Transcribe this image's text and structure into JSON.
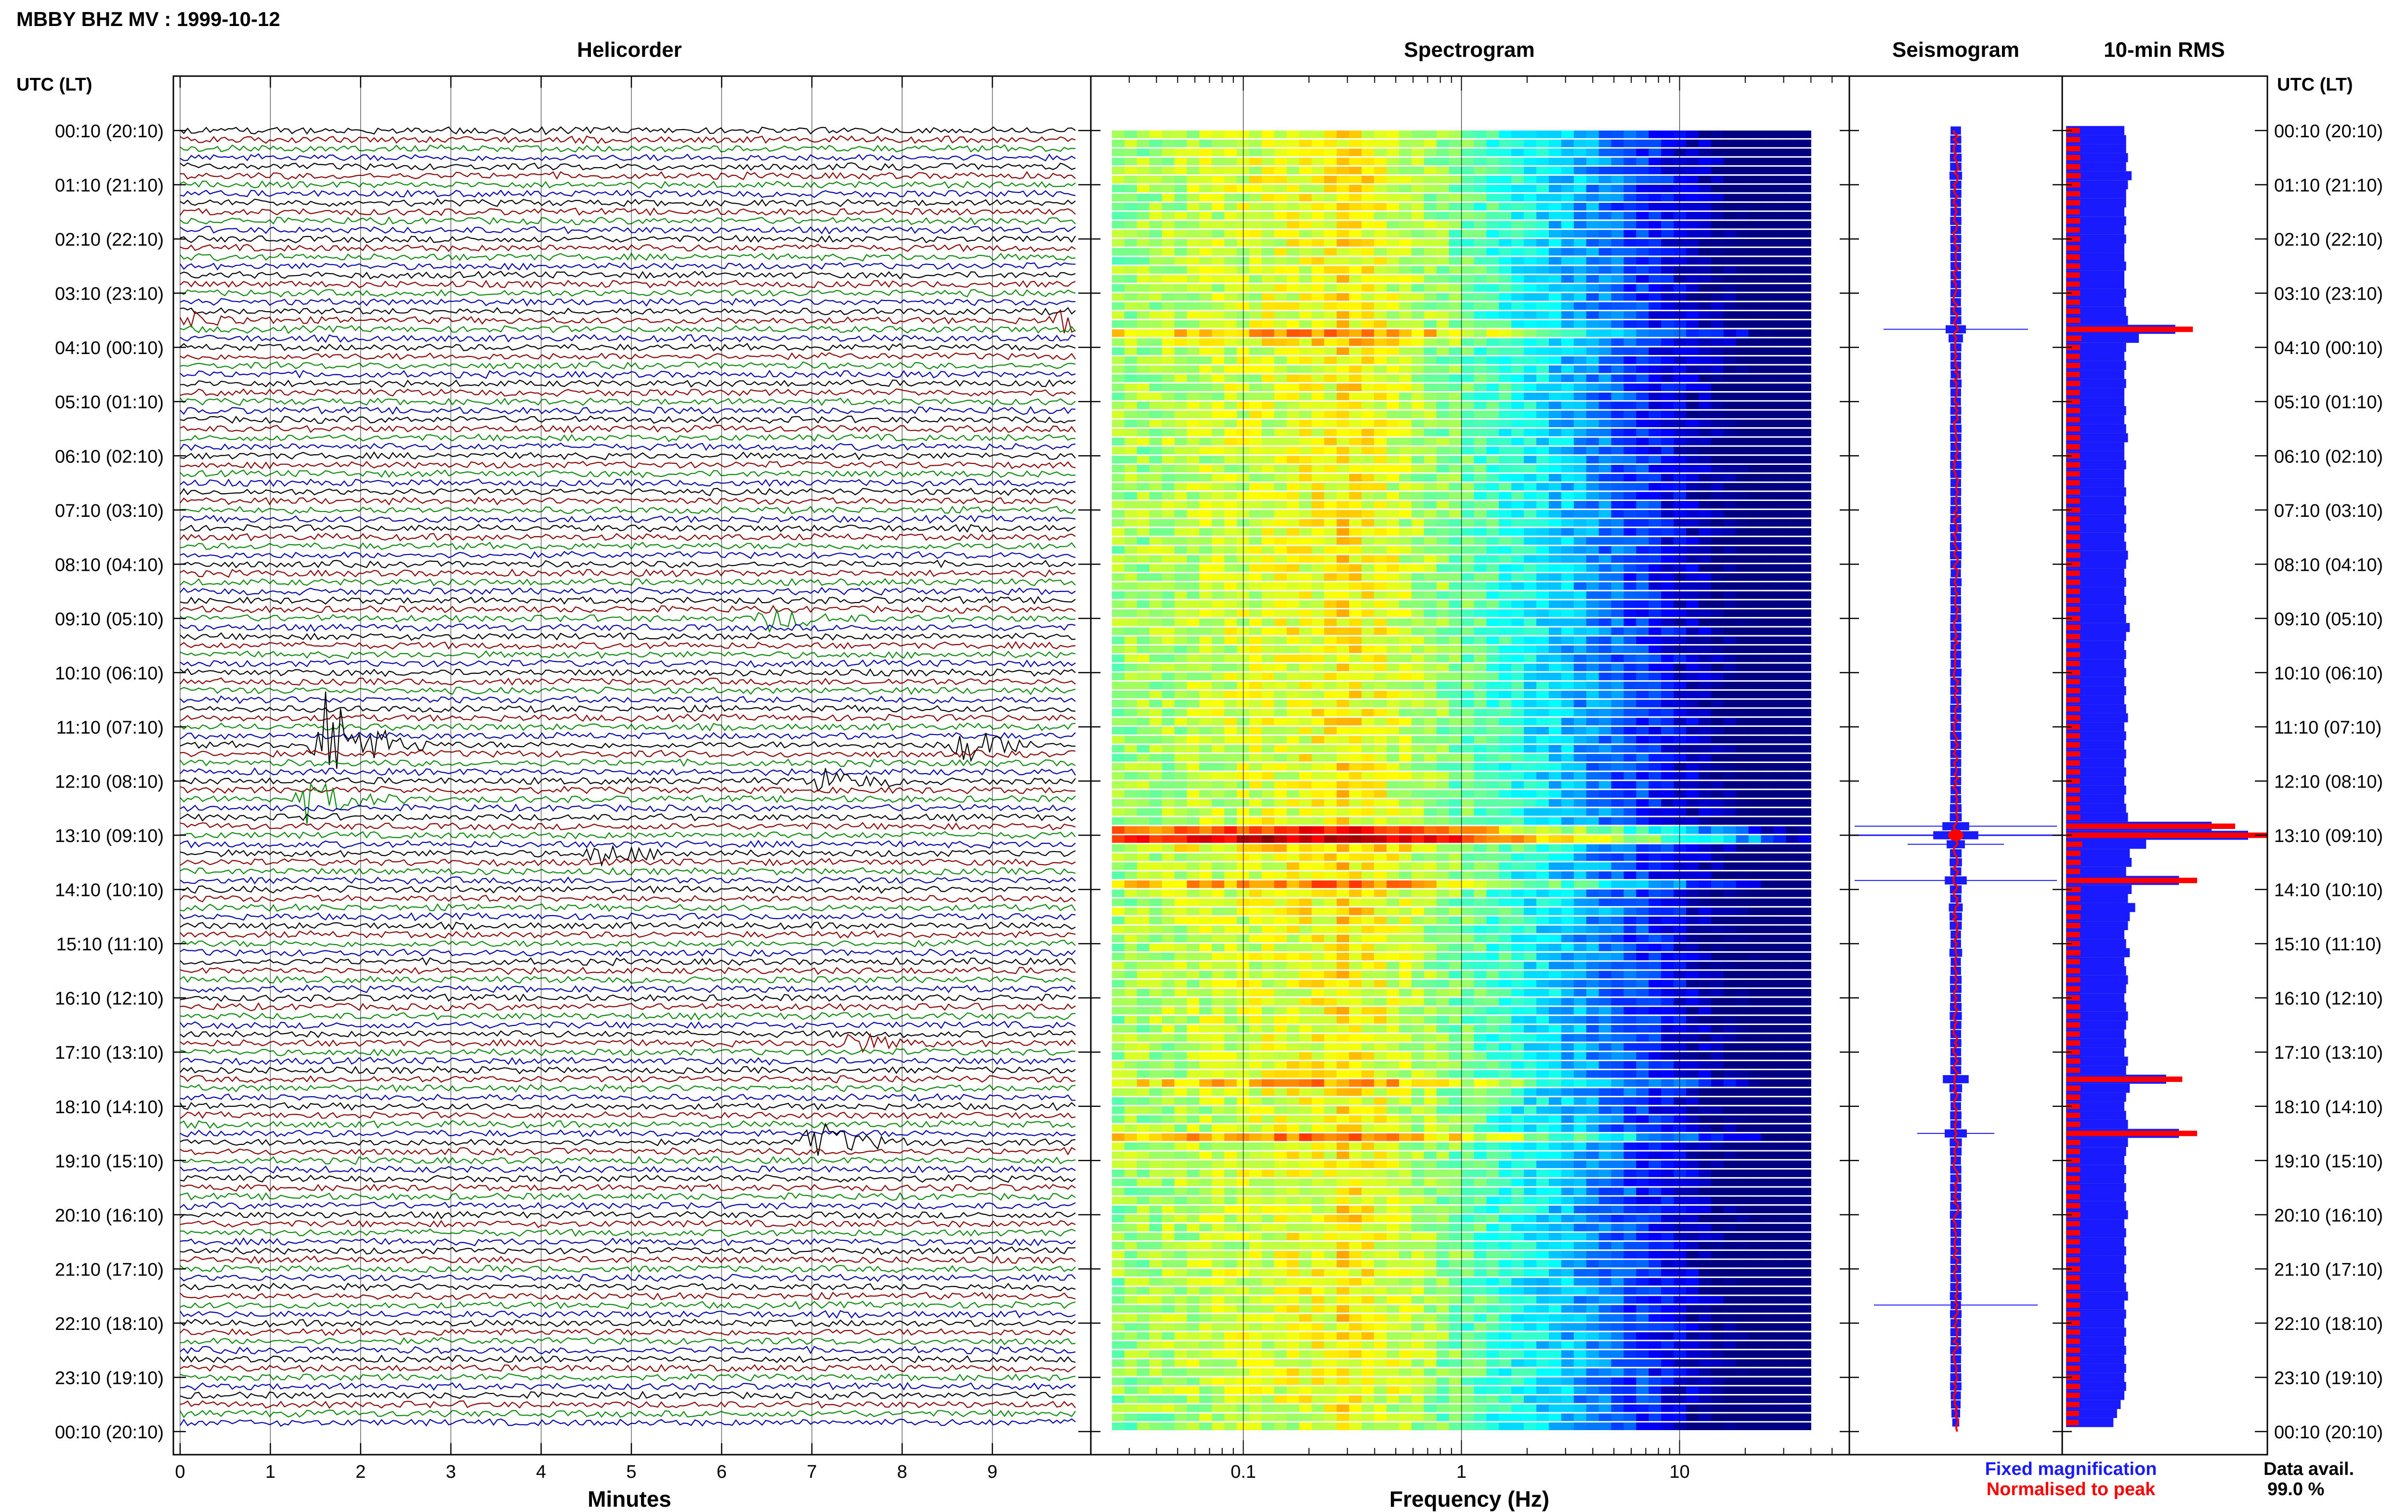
{
  "header": {
    "station_title": "MBBY BHZ MV : 1999-10-12"
  },
  "panels": {
    "helicorder": "Helicorder",
    "spectrogram": "Spectrogram",
    "seismogram": "Seismogram",
    "rms": "10-min RMS"
  },
  "axis": {
    "time_label_left": "UTC (LT)",
    "time_label_right": "UTC (LT)",
    "x_label_helicorder": "Minutes",
    "x_label_spectrogram": "Frequency (Hz)"
  },
  "time_ticks": [
    "00:10 (20:10)",
    "01:10 (21:10)",
    "02:10 (22:10)",
    "03:10 (23:10)",
    "04:10 (00:10)",
    "05:10 (01:10)",
    "06:10 (02:10)",
    "07:10 (03:10)",
    "08:10 (04:10)",
    "09:10 (05:10)",
    "10:10 (06:10)",
    "11:10 (07:10)",
    "12:10 (08:10)",
    "13:10 (09:10)",
    "14:10 (10:10)",
    "15:10 (11:10)",
    "16:10 (12:10)",
    "17:10 (13:10)",
    "18:10 (14:10)",
    "19:10 (15:10)",
    "20:10 (16:10)",
    "21:10 (17:10)",
    "22:10 (18:10)",
    "23:10 (19:10)",
    "00:10 (20:10)"
  ],
  "minute_ticks": [
    "0",
    "1",
    "2",
    "3",
    "4",
    "5",
    "6",
    "7",
    "8",
    "9"
  ],
  "freq_ticks": [
    "0.1",
    "1",
    "10"
  ],
  "legend": {
    "fixed": "Fixed magnification",
    "normalised": "Normalised to peak",
    "fixed_color": "#1a1aff",
    "normalised_color": "#ff0000"
  },
  "availability": {
    "label": "Data avail.",
    "value": "99.0 %"
  },
  "trace_colors": [
    "#000000",
    "#8b0000",
    "#0a8a0a",
    "#0000b0"
  ],
  "chart_data": [
    {
      "type": "line",
      "title": "Helicorder",
      "xlabel": "Minutes",
      "xlim": [
        0,
        10
      ],
      "rows_per_hour": 6,
      "row_count": 144,
      "events": [
        {
          "time": "03:40",
          "minute": 9.8,
          "amplitude": "large"
        },
        {
          "time": "03:40",
          "minute": 0.1,
          "amplitude": "small"
        },
        {
          "time": "09:10",
          "minute": 6.5,
          "amplitude": "medium"
        },
        {
          "time": "11:30",
          "minute": 1.6,
          "amplitude": "very large"
        },
        {
          "time": "11:30",
          "minute": 8.6,
          "amplitude": "large"
        },
        {
          "time": "12:10",
          "minute": 7.1,
          "amplitude": "medium"
        },
        {
          "time": "12:30",
          "minute": 1.4,
          "amplitude": "large"
        },
        {
          "time": "13:30",
          "minute": 4.6,
          "amplitude": "medium"
        },
        {
          "time": "17:00",
          "minute": 7.3,
          "amplitude": "medium"
        },
        {
          "time": "18:50",
          "minute": 7.0,
          "amplitude": "large"
        }
      ]
    },
    {
      "type": "heatmap",
      "title": "Spectrogram",
      "xlabel": "Frequency (Hz)",
      "xscale": "log",
      "xlim": [
        0.025,
        40
      ],
      "peak_band_hz": [
        0.2,
        0.35
      ]
    },
    {
      "type": "line",
      "title": "Seismogram",
      "series": [
        {
          "name": "Fixed magnification"
        },
        {
          "name": "Normalised to peak"
        }
      ]
    },
    {
      "type": "bar",
      "title": "10-min RMS",
      "orientation": "horizontal",
      "series": [
        {
          "name": "Fixed magnification"
        },
        {
          "name": "Normalised to peak"
        }
      ],
      "rms_relative": [
        0.32,
        0.33,
        0.33,
        0.34,
        0.33,
        0.36,
        0.34,
        0.33,
        0.33,
        0.32,
        0.33,
        0.32,
        0.33,
        0.32,
        0.32,
        0.33,
        0.32,
        0.32,
        0.33,
        0.32,
        0.33,
        0.34,
        0.6,
        0.4,
        0.33,
        0.32,
        0.33,
        0.32,
        0.33,
        0.32,
        0.32,
        0.33,
        0.32,
        0.33,
        0.34,
        0.32,
        0.32,
        0.33,
        0.32,
        0.32,
        0.33,
        0.32,
        0.33,
        0.32,
        0.33,
        0.32,
        0.33,
        0.34,
        0.33,
        0.32,
        0.33,
        0.32,
        0.33,
        0.32,
        0.33,
        0.35,
        0.33,
        0.32,
        0.33,
        0.32,
        0.33,
        0.32,
        0.33,
        0.32,
        0.33,
        0.34,
        0.32,
        0.33,
        0.32,
        0.33,
        0.32,
        0.33,
        0.32,
        0.33,
        0.32,
        0.33,
        0.34,
        0.8,
        1.0,
        0.44,
        0.35,
        0.36,
        0.33,
        0.62,
        0.36,
        0.34,
        0.38,
        0.35,
        0.34,
        0.32,
        0.33,
        0.35,
        0.32,
        0.33,
        0.34,
        0.33,
        0.32,
        0.33,
        0.34,
        0.33,
        0.32,
        0.33,
        0.32,
        0.34,
        0.33,
        0.55,
        0.35,
        0.33,
        0.32,
        0.33,
        0.34,
        0.62,
        0.34,
        0.33,
        0.32,
        0.33,
        0.32,
        0.33,
        0.32,
        0.33,
        0.34,
        0.32,
        0.33,
        0.32,
        0.33,
        0.32,
        0.33,
        0.32,
        0.33,
        0.34,
        0.32,
        0.33,
        0.32,
        0.33,
        0.32,
        0.33,
        0.32,
        0.33,
        0.32,
        0.33,
        0.32,
        0.3,
        0.28,
        0.26
      ]
    }
  ]
}
